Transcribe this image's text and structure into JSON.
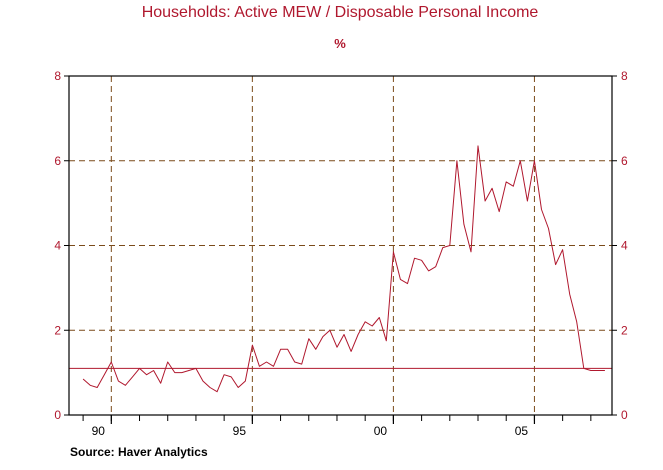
{
  "chart_data": {
    "type": "line",
    "title": "Households: Active MEW / Disposable Personal Income",
    "unit": "%",
    "source": "Source: Haver Analytics",
    "y_ticks": [
      {
        "value": 0,
        "label": "0"
      },
      {
        "value": 2,
        "label": "2"
      },
      {
        "value": 4,
        "label": "4"
      },
      {
        "value": 6,
        "label": "6"
      },
      {
        "value": 8,
        "label": "8"
      }
    ],
    "x_ticks": [
      {
        "value": 1990,
        "label": "90"
      },
      {
        "value": 1995,
        "label": "95"
      },
      {
        "value": 2000,
        "label": "00"
      },
      {
        "value": 2005,
        "label": "05"
      }
    ],
    "xlim": [
      1988.5,
      2007.75
    ],
    "ylim": [
      0,
      8
    ],
    "grid": true,
    "reference_line": {
      "value": 1.1
    },
    "colors": {
      "line": "#b0182e",
      "text": "#b0182e",
      "grid": "#7a4a1a"
    },
    "series": [
      {
        "x": [
          1989.0,
          1989.25,
          1989.5,
          1989.75,
          1990.0,
          1990.25,
          1990.5,
          1990.75,
          1991.0,
          1991.25,
          1991.5,
          1991.75,
          1992.0,
          1992.25,
          1992.5,
          1992.75,
          1993.0,
          1993.25,
          1993.5,
          1993.75,
          1994.0,
          1994.25,
          1994.5,
          1994.75,
          1995.0,
          1995.25,
          1995.5,
          1995.75,
          1996.0,
          1996.25,
          1996.5,
          1996.75,
          1997.0,
          1997.25,
          1997.5,
          1997.75,
          1998.0,
          1998.25,
          1998.5,
          1998.75,
          1999.0,
          1999.25,
          1999.5,
          1999.75,
          2000.0,
          2000.25,
          2000.5,
          2000.75,
          2001.0,
          2001.25,
          2001.5,
          2001.75,
          2002.0,
          2002.25,
          2002.5,
          2002.75,
          2003.0,
          2003.25,
          2003.5,
          2003.75,
          2004.0,
          2004.25,
          2004.5,
          2004.75,
          2005.0,
          2005.25,
          2005.5,
          2005.75,
          2006.0,
          2006.25,
          2006.5,
          2006.75,
          2007.0,
          2007.25,
          2007.5
        ],
        "values": [
          0.85,
          0.7,
          0.65,
          0.95,
          1.25,
          0.8,
          0.7,
          0.9,
          1.1,
          0.95,
          1.05,
          0.75,
          1.25,
          1.0,
          1.0,
          1.05,
          1.1,
          0.8,
          0.65,
          0.55,
          0.95,
          0.9,
          0.65,
          0.8,
          1.65,
          1.15,
          1.25,
          1.15,
          1.55,
          1.55,
          1.25,
          1.2,
          1.8,
          1.55,
          1.85,
          2.0,
          1.6,
          1.9,
          1.5,
          1.9,
          2.2,
          2.1,
          2.3,
          1.75,
          3.85,
          3.2,
          3.1,
          3.7,
          3.65,
          3.4,
          3.5,
          3.95,
          4.0,
          6.0,
          4.5,
          3.85,
          6.35,
          5.05,
          5.35,
          4.8,
          5.5,
          5.4,
          6.0,
          5.05,
          6.0,
          4.85,
          4.4,
          3.55,
          3.9,
          2.85,
          2.2,
          1.1,
          1.05,
          1.05,
          1.05
        ]
      }
    ]
  }
}
